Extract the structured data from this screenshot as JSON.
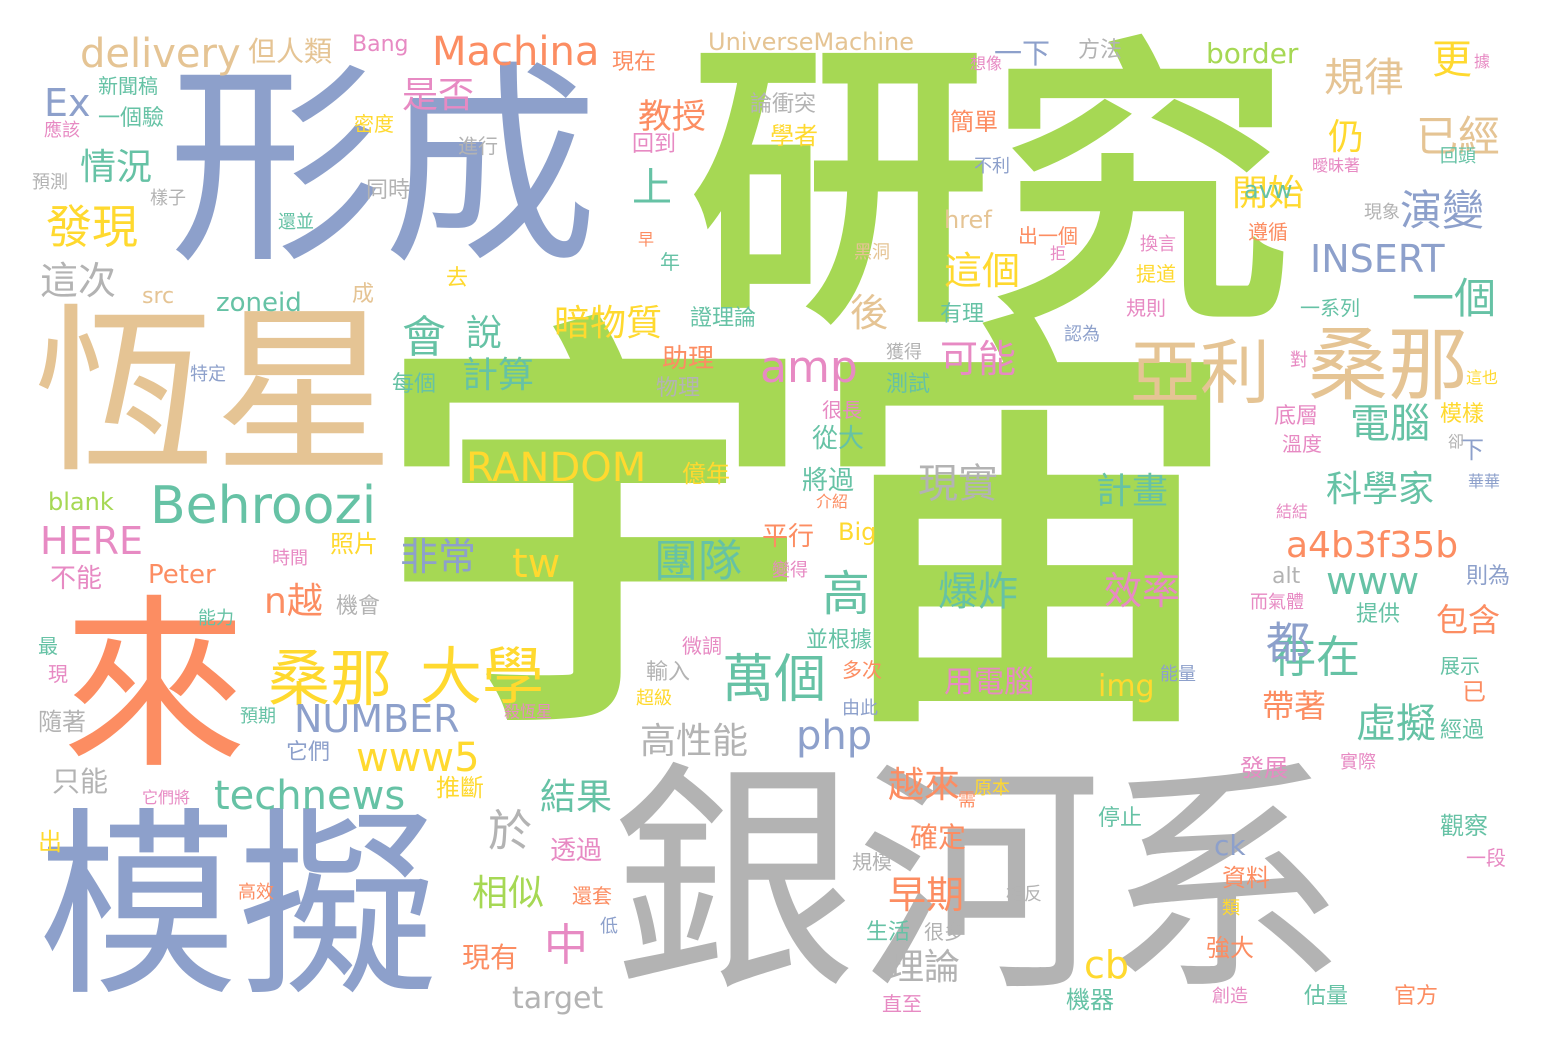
{
  "palette": {
    "green": "#a6d854",
    "blue": "#8da0cb",
    "orange": "#fc8d62",
    "tan": "#e5c494",
    "gray": "#b3b3b3",
    "teal": "#66c2a5",
    "pink": "#e78ac3",
    "yellow": "#ffd92f"
  },
  "words": [
    {
      "text": "宇宙",
      "color": "green"
    },
    {
      "text": "研究",
      "color": "green"
    },
    {
      "text": "形成",
      "color": "blue"
    },
    {
      "text": "銀河系",
      "color": "gray"
    },
    {
      "text": "模擬",
      "color": "blue"
    },
    {
      "text": "恆星",
      "color": "tan"
    },
    {
      "text": "來",
      "color": "orange"
    },
    {
      "text": "桑那",
      "color": "tan"
    },
    {
      "text": "亞利",
      "color": "tan"
    },
    {
      "text": "Behroozi",
      "color": "teal"
    },
    {
      "text": "桑那",
      "color": "yellow"
    },
    {
      "text": "大學",
      "color": "yellow"
    },
    {
      "text": "萬個",
      "color": "teal"
    },
    {
      "text": "Machina",
      "color": "orange"
    },
    {
      "text": "delivery",
      "color": "tan"
    },
    {
      "text": "發現",
      "color": "yellow"
    },
    {
      "text": "這次",
      "color": "gray"
    },
    {
      "text": "情況",
      "color": "teal"
    },
    {
      "text": "是否",
      "color": "pink"
    },
    {
      "text": "規律",
      "color": "tan"
    },
    {
      "text": "已經",
      "color": "tan"
    },
    {
      "text": "仍",
      "color": "yellow"
    },
    {
      "text": "更",
      "color": "yellow"
    },
    {
      "text": "演變",
      "color": "blue"
    },
    {
      "text": "開始",
      "color": "yellow"
    },
    {
      "text": "上",
      "color": "teal"
    },
    {
      "text": "教授",
      "color": "orange"
    },
    {
      "text": "INSERT",
      "color": "blue"
    },
    {
      "text": "這個",
      "color": "yellow"
    },
    {
      "text": "一個",
      "color": "teal"
    },
    {
      "text": "會",
      "color": "teal"
    },
    {
      "text": "說",
      "color": "teal"
    },
    {
      "text": "暗物質",
      "color": "yellow"
    },
    {
      "text": "後",
      "color": "tan"
    },
    {
      "text": "可能",
      "color": "pink"
    },
    {
      "text": "amp",
      "color": "pink"
    },
    {
      "text": "計算",
      "color": "teal"
    },
    {
      "text": "電腦",
      "color": "teal"
    },
    {
      "text": "科學家",
      "color": "teal"
    },
    {
      "text": "計畫",
      "color": "teal"
    },
    {
      "text": "現實",
      "color": "gray"
    },
    {
      "text": "RANDOM",
      "color": "yellow"
    },
    {
      "text": "團隊",
      "color": "teal"
    },
    {
      "text": "高",
      "color": "teal"
    },
    {
      "text": "爆炸",
      "color": "teal"
    },
    {
      "text": "效率",
      "color": "pink"
    },
    {
      "text": "用電腦",
      "color": "pink"
    },
    {
      "text": "img",
      "color": "yellow"
    },
    {
      "text": "a4b3f35b",
      "color": "orange"
    },
    {
      "text": "www",
      "color": "teal"
    },
    {
      "text": "存在",
      "color": "teal"
    },
    {
      "text": "都",
      "color": "blue"
    },
    {
      "text": "虛擬",
      "color": "teal"
    },
    {
      "text": "包含",
      "color": "orange"
    },
    {
      "text": "帶著",
      "color": "orange"
    },
    {
      "text": "非常",
      "color": "blue"
    },
    {
      "text": "tw",
      "color": "yellow"
    },
    {
      "text": "HERE",
      "color": "pink"
    },
    {
      "text": "n越",
      "color": "orange"
    },
    {
      "text": "NUMBER",
      "color": "blue"
    },
    {
      "text": "www5",
      "color": "yellow"
    },
    {
      "text": "php",
      "color": "blue"
    },
    {
      "text": "高性能",
      "color": "gray"
    },
    {
      "text": "technews",
      "color": "teal"
    },
    {
      "text": "結果",
      "color": "teal"
    },
    {
      "text": "於",
      "color": "gray"
    },
    {
      "text": "中",
      "color": "pink"
    },
    {
      "text": "相似",
      "color": "green"
    },
    {
      "text": "早期",
      "color": "orange"
    },
    {
      "text": "越來",
      "color": "orange"
    },
    {
      "text": "確定",
      "color": "orange"
    },
    {
      "text": "理論",
      "color": "gray"
    },
    {
      "text": "cb",
      "color": "yellow"
    },
    {
      "text": "target",
      "color": "gray"
    },
    {
      "text": "現有",
      "color": "orange"
    },
    {
      "text": "透過",
      "color": "pink"
    },
    {
      "text": "Ex",
      "color": "blue"
    },
    {
      "text": "但人類",
      "color": "tan"
    },
    {
      "text": "Bang",
      "color": "pink"
    },
    {
      "text": "UniverseMachine",
      "color": "tan"
    },
    {
      "text": "border",
      "color": "green"
    },
    {
      "text": "一下",
      "color": "blue"
    },
    {
      "text": "方法",
      "color": "gray"
    },
    {
      "text": "現在",
      "color": "orange"
    },
    {
      "text": "論衝突",
      "color": "gray"
    },
    {
      "text": "新聞稿",
      "color": "teal"
    },
    {
      "text": "一個驗",
      "color": "teal"
    },
    {
      "text": "應該",
      "color": "pink"
    },
    {
      "text": "密度",
      "color": "yellow"
    },
    {
      "text": "進行",
      "color": "gray"
    },
    {
      "text": "回到",
      "color": "pink"
    },
    {
      "text": "學者",
      "color": "yellow"
    },
    {
      "text": "簡單",
      "color": "orange"
    },
    {
      "text": "預測",
      "color": "gray"
    },
    {
      "text": "樣子",
      "color": "gray"
    },
    {
      "text": "同時",
      "color": "gray"
    },
    {
      "text": "還並",
      "color": "teal"
    },
    {
      "text": "不利",
      "color": "blue"
    },
    {
      "text": "現象",
      "color": "gray"
    },
    {
      "text": "回頭",
      "color": "teal"
    },
    {
      "text": "遵循",
      "color": "orange"
    },
    {
      "text": "avw",
      "color": "teal"
    },
    {
      "text": "href",
      "color": "tan"
    },
    {
      "text": "出一個",
      "color": "orange"
    },
    {
      "text": "換言",
      "color": "pink"
    },
    {
      "text": "提道",
      "color": "yellow"
    },
    {
      "text": "src",
      "color": "tan"
    },
    {
      "text": "zoneid",
      "color": "teal"
    },
    {
      "text": "成",
      "color": "tan"
    },
    {
      "text": "去",
      "color": "yellow"
    },
    {
      "text": "年",
      "color": "teal"
    },
    {
      "text": "黑洞",
      "color": "tan"
    },
    {
      "text": "有理",
      "color": "teal"
    },
    {
      "text": "規則",
      "color": "pink"
    },
    {
      "text": "一系列",
      "color": "teal"
    },
    {
      "text": "認為",
      "color": "blue"
    },
    {
      "text": "證理論",
      "color": "teal"
    },
    {
      "text": "助理",
      "color": "orange"
    },
    {
      "text": "每個",
      "color": "teal"
    },
    {
      "text": "特定",
      "color": "blue"
    },
    {
      "text": "物理",
      "color": "gray"
    },
    {
      "text": "獲得",
      "color": "gray"
    },
    {
      "text": "測試",
      "color": "teal"
    },
    {
      "text": "很長",
      "color": "pink"
    },
    {
      "text": "從大",
      "color": "teal"
    },
    {
      "text": "底層",
      "color": "pink"
    },
    {
      "text": "模樣",
      "color": "yellow"
    },
    {
      "text": "溫度",
      "color": "pink"
    },
    {
      "text": "下",
      "color": "blue"
    },
    {
      "text": "將過",
      "color": "teal"
    },
    {
      "text": "億年",
      "color": "yellow"
    },
    {
      "text": "blank",
      "color": "green"
    },
    {
      "text": "照片",
      "color": "yellow"
    },
    {
      "text": "平行",
      "color": "orange"
    },
    {
      "text": "Big",
      "color": "yellow"
    },
    {
      "text": "不能",
      "color": "pink"
    },
    {
      "text": "時間",
      "color": "pink"
    },
    {
      "text": "Peter",
      "color": "orange"
    },
    {
      "text": "變得",
      "color": "pink"
    },
    {
      "text": "alt",
      "color": "gray"
    },
    {
      "text": "則為",
      "color": "blue"
    },
    {
      "text": "機會",
      "color": "gray"
    },
    {
      "text": "能力",
      "color": "teal"
    },
    {
      "text": "而氣體",
      "color": "pink"
    },
    {
      "text": "提供",
      "color": "teal"
    },
    {
      "text": "並根據",
      "color": "teal"
    },
    {
      "text": "微調",
      "color": "pink"
    },
    {
      "text": "最",
      "color": "teal"
    },
    {
      "text": "現",
      "color": "pink"
    },
    {
      "text": "輸入",
      "color": "gray"
    },
    {
      "text": "多次",
      "color": "orange"
    },
    {
      "text": "能量",
      "color": "blue"
    },
    {
      "text": "展示",
      "color": "teal"
    },
    {
      "text": "已",
      "color": "orange"
    },
    {
      "text": "超級",
      "color": "yellow"
    },
    {
      "text": "殺恆星",
      "color": "pink"
    },
    {
      "text": "由此",
      "color": "blue"
    },
    {
      "text": "預期",
      "color": "teal"
    },
    {
      "text": "隨著",
      "color": "gray"
    },
    {
      "text": "它們",
      "color": "blue"
    },
    {
      "text": "經過",
      "color": "teal"
    },
    {
      "text": "實際",
      "color": "pink"
    },
    {
      "text": "只能",
      "color": "gray"
    },
    {
      "text": "推斷",
      "color": "yellow"
    },
    {
      "text": "發展",
      "color": "pink"
    },
    {
      "text": "它們將",
      "color": "pink"
    },
    {
      "text": "需",
      "color": "orange"
    },
    {
      "text": "原本",
      "color": "yellow"
    },
    {
      "text": "停止",
      "color": "teal"
    },
    {
      "text": "觀察",
      "color": "teal"
    },
    {
      "text": "一段",
      "color": "pink"
    },
    {
      "text": "出",
      "color": "yellow"
    },
    {
      "text": "ck",
      "color": "blue"
    },
    {
      "text": "資料",
      "color": "orange"
    },
    {
      "text": "規模",
      "color": "gray"
    },
    {
      "text": "高效",
      "color": "orange"
    },
    {
      "text": "還套",
      "color": "orange"
    },
    {
      "text": "相反",
      "color": "gray"
    },
    {
      "text": "類",
      "color": "yellow"
    },
    {
      "text": "低",
      "color": "blue"
    },
    {
      "text": "生活",
      "color": "teal"
    },
    {
      "text": "很多",
      "color": "gray"
    },
    {
      "text": "強大",
      "color": "orange"
    },
    {
      "text": "直至",
      "color": "pink"
    },
    {
      "text": "機器",
      "color": "teal"
    },
    {
      "text": "估量",
      "color": "teal"
    },
    {
      "text": "官方",
      "color": "orange"
    },
    {
      "text": "創造",
      "color": "pink"
    },
    {
      "text": "想像",
      "color": "pink"
    },
    {
      "text": "據",
      "color": "pink"
    },
    {
      "text": "曖昧著",
      "color": "pink"
    },
    {
      "text": "這也",
      "color": "yellow"
    },
    {
      "text": "對",
      "color": "pink"
    },
    {
      "text": "卻",
      "color": "gray"
    },
    {
      "text": "華華",
      "color": "blue"
    },
    {
      "text": "介紹",
      "color": "orange"
    },
    {
      "text": "早",
      "color": "orange"
    },
    {
      "text": "拒",
      "color": "pink"
    },
    {
      "text": "結結",
      "color": "pink"
    }
  ]
}
